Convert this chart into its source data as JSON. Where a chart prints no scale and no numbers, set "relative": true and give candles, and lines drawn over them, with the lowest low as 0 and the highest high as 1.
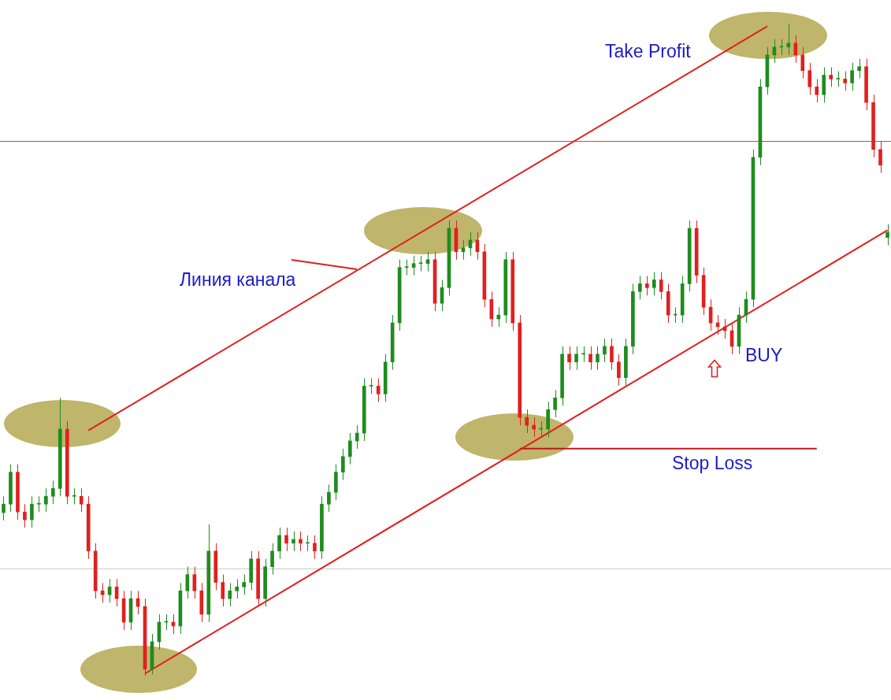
{
  "chart_data": {
    "type": "candlestick",
    "relative": true,
    "categories": [
      null,
      null,
      null,
      null,
      null,
      null,
      null,
      null,
      null,
      null,
      null,
      null,
      null,
      null,
      null,
      null,
      null,
      null,
      null,
      null,
      null,
      null,
      null,
      null,
      null,
      null,
      null,
      null,
      null,
      null,
      null,
      null,
      null,
      null,
      null,
      null,
      null,
      null,
      null,
      null,
      null,
      null,
      null,
      null,
      null,
      null,
      null,
      null,
      null,
      null,
      null,
      null,
      null,
      null,
      null,
      null,
      null,
      null,
      null,
      null,
      null,
      null,
      null,
      null,
      null,
      null,
      null,
      null,
      null,
      null,
      null,
      null,
      null,
      null,
      null,
      null,
      null,
      null,
      null,
      null,
      null,
      null,
      null,
      null,
      null,
      null,
      null,
      null,
      null,
      null,
      null,
      null,
      null,
      null,
      null,
      null,
      null,
      null,
      null,
      null,
      null,
      null,
      null,
      null,
      null,
      null,
      null,
      null,
      null,
      null,
      null,
      null,
      null,
      null,
      null,
      null,
      null,
      null,
      null,
      null,
      null,
      null,
      null,
      null,
      null,
      null
    ],
    "ohlc": [
      [
        0.25,
        0.275,
        0.238,
        0.263
      ],
      [
        0.263,
        0.324,
        0.251,
        0.312
      ],
      [
        0.312,
        0.324,
        0.239,
        0.251
      ],
      [
        0.251,
        0.263,
        0.227,
        0.239
      ],
      [
        0.239,
        0.275,
        0.227,
        0.263
      ],
      [
        0.263,
        0.275,
        0.251,
        0.263
      ],
      [
        0.263,
        0.287,
        0.251,
        0.275
      ],
      [
        0.275,
        0.299,
        0.263,
        0.287
      ],
      [
        0.287,
        0.426,
        0.275,
        0.378
      ],
      [
        0.378,
        0.39,
        0.263,
        0.275
      ],
      [
        0.275,
        0.287,
        0.263,
        0.275
      ],
      [
        0.275,
        0.287,
        0.251,
        0.263
      ],
      [
        0.263,
        0.275,
        0.179,
        0.191
      ],
      [
        0.191,
        0.203,
        0.118,
        0.13
      ],
      [
        0.13,
        0.142,
        0.112,
        0.124
      ],
      [
        0.124,
        0.148,
        0.112,
        0.136
      ],
      [
        0.136,
        0.148,
        0.106,
        0.118
      ],
      [
        0.118,
        0.13,
        0.07,
        0.082
      ],
      [
        0.082,
        0.13,
        0.07,
        0.118
      ],
      [
        0.118,
        0.13,
        0.094,
        0.106
      ],
      [
        0.106,
        0.118,
        0,
        0.01
      ],
      [
        0.01,
        0.064,
        0.002,
        0.052
      ],
      [
        0.052,
        0.094,
        0.04,
        0.082
      ],
      [
        0.082,
        0.094,
        0.07,
        0.082
      ],
      [
        0.082,
        0.094,
        0.064,
        0.076
      ],
      [
        0.076,
        0.142,
        0.064,
        0.13
      ],
      [
        0.13,
        0.167,
        0.118,
        0.155
      ],
      [
        0.155,
        0.167,
        0.118,
        0.13
      ],
      [
        0.13,
        0.142,
        0.082,
        0.094
      ],
      [
        0.094,
        0.232,
        0.082,
        0.191
      ],
      [
        0.191,
        0.203,
        0.131,
        0.143
      ],
      [
        0.143,
        0.155,
        0.106,
        0.118
      ],
      [
        0.118,
        0.142,
        0.106,
        0.13
      ],
      [
        0.13,
        0.148,
        0.118,
        0.136
      ],
      [
        0.136,
        0.155,
        0.124,
        0.143
      ],
      [
        0.143,
        0.191,
        0.131,
        0.179
      ],
      [
        0.179,
        0.191,
        0.106,
        0.118
      ],
      [
        0.118,
        0.179,
        0.106,
        0.167
      ],
      [
        0.167,
        0.203,
        0.155,
        0.191
      ],
      [
        0.191,
        0.227,
        0.179,
        0.215
      ],
      [
        0.215,
        0.227,
        0.191,
        0.203
      ],
      [
        0.203,
        0.221,
        0.191,
        0.209
      ],
      [
        0.209,
        0.221,
        0.191,
        0.203
      ],
      [
        0.203,
        0.215,
        0.191,
        0.203
      ],
      [
        0.203,
        0.215,
        0.179,
        0.191
      ],
      [
        0.191,
        0.275,
        0.179,
        0.263
      ],
      [
        0.263,
        0.293,
        0.251,
        0.281
      ],
      [
        0.281,
        0.324,
        0.269,
        0.312
      ],
      [
        0.312,
        0.348,
        0.3,
        0.336
      ],
      [
        0.336,
        0.372,
        0.324,
        0.36
      ],
      [
        0.36,
        0.384,
        0.348,
        0.372
      ],
      [
        0.372,
        0.456,
        0.36,
        0.444
      ],
      [
        0.444,
        0.456,
        0.432,
        0.444
      ],
      [
        0.444,
        0.456,
        0.42,
        0.432
      ],
      [
        0.432,
        0.493,
        0.42,
        0.481
      ],
      [
        0.481,
        0.553,
        0.469,
        0.541
      ],
      [
        0.541,
        0.638,
        0.529,
        0.626
      ],
      [
        0.626,
        0.638,
        0.614,
        0.626
      ],
      [
        0.626,
        0.644,
        0.614,
        0.632
      ],
      [
        0.632,
        0.644,
        0.62,
        0.632
      ],
      [
        0.632,
        0.65,
        0.62,
        0.638
      ],
      [
        0.638,
        0.65,
        0.559,
        0.571
      ],
      [
        0.571,
        0.607,
        0.559,
        0.595
      ],
      [
        0.595,
        0.698,
        0.583,
        0.686
      ],
      [
        0.686,
        0.698,
        0.638,
        0.65
      ],
      [
        0.65,
        0.668,
        0.638,
        0.656
      ],
      [
        0.656,
        0.68,
        0.644,
        0.668
      ],
      [
        0.668,
        0.68,
        0.638,
        0.65
      ],
      [
        0.65,
        0.662,
        0.565,
        0.577
      ],
      [
        0.577,
        0.589,
        0.535,
        0.547
      ],
      [
        0.547,
        0.565,
        0.535,
        0.553
      ],
      [
        0.553,
        0.65,
        0.541,
        0.638
      ],
      [
        0.638,
        0.65,
        0.529,
        0.541
      ],
      [
        0.541,
        0.553,
        0.384,
        0.396
      ],
      [
        0.396,
        0.408,
        0.372,
        0.384
      ],
      [
        0.384,
        0.396,
        0.366,
        0.378
      ],
      [
        0.378,
        0.39,
        0.366,
        0.378
      ],
      [
        0.378,
        0.42,
        0.366,
        0.408
      ],
      [
        0.408,
        0.438,
        0.396,
        0.426
      ],
      [
        0.426,
        0.505,
        0.414,
        0.493
      ],
      [
        0.493,
        0.505,
        0.469,
        0.481
      ],
      [
        0.481,
        0.505,
        0.469,
        0.493
      ],
      [
        0.493,
        0.505,
        0.481,
        0.493
      ],
      [
        0.493,
        0.505,
        0.469,
        0.481
      ],
      [
        0.481,
        0.505,
        0.469,
        0.493
      ],
      [
        0.493,
        0.517,
        0.481,
        0.505
      ],
      [
        0.505,
        0.517,
        0.469,
        0.481
      ],
      [
        0.481,
        0.493,
        0.445,
        0.457
      ],
      [
        0.457,
        0.517,
        0.445,
        0.505
      ],
      [
        0.505,
        0.601,
        0.493,
        0.589
      ],
      [
        0.589,
        0.613,
        0.577,
        0.601
      ],
      [
        0.601,
        0.613,
        0.583,
        0.595
      ],
      [
        0.595,
        0.619,
        0.583,
        0.607
      ],
      [
        0.607,
        0.619,
        0.577,
        0.589
      ],
      [
        0.589,
        0.601,
        0.541,
        0.553
      ],
      [
        0.553,
        0.565,
        0.541,
        0.553
      ],
      [
        0.553,
        0.613,
        0.541,
        0.601
      ],
      [
        0.601,
        0.698,
        0.589,
        0.686
      ],
      [
        0.686,
        0.698,
        0.602,
        0.614
      ],
      [
        0.614,
        0.626,
        0.553,
        0.565
      ],
      [
        0.565,
        0.577,
        0.529,
        0.541
      ],
      [
        0.541,
        0.553,
        0.523,
        0.535
      ],
      [
        0.535,
        0.547,
        0.517,
        0.529
      ],
      [
        0.529,
        0.541,
        0.493,
        0.505
      ],
      [
        0.505,
        0.565,
        0.493,
        0.553
      ],
      [
        0.553,
        0.589,
        0.541,
        0.577
      ],
      [
        0.577,
        0.807,
        0.565,
        0.795
      ],
      [
        0.795,
        0.915,
        0.783,
        0.903
      ],
      [
        0.903,
        0.964,
        0.891,
        0.952
      ],
      [
        0.952,
        0.976,
        0.94,
        0.964
      ],
      [
        0.964,
        0.976,
        0.952,
        0.964
      ],
      [
        0.964,
        1,
        0.952,
        0.97
      ],
      [
        0.97,
        0.982,
        0.94,
        0.952
      ],
      [
        0.952,
        0.964,
        0.916,
        0.928
      ],
      [
        0.928,
        0.94,
        0.891,
        0.903
      ],
      [
        0.903,
        0.915,
        0.879,
        0.891
      ],
      [
        0.891,
        0.933,
        0.879,
        0.921
      ],
      [
        0.921,
        0.933,
        0.903,
        0.915
      ],
      [
        0.915,
        0.927,
        0.903,
        0.915
      ],
      [
        0.915,
        0.927,
        0.897,
        0.909
      ],
      [
        0.909,
        0.94,
        0.897,
        0.928
      ],
      [
        0.928,
        0.946,
        0.916,
        0.934
      ],
      [
        0.934,
        0.946,
        0.867,
        0.879
      ],
      [
        0.879,
        0.891,
        0.795,
        0.807
      ],
      [
        0.807,
        0.819,
        0.771,
        0.783
      ],
      [
        0.672,
        0.692,
        0.66,
        0.68
      ]
    ],
    "colors": [
      "#1e8c1e",
      "#1e8c1e",
      "#e02020",
      "#e02020",
      "#1e8c1e",
      "#1e8c1e",
      "#1e8c1e",
      "#1e8c1e",
      "#1e8c1e",
      "#e02020",
      "#1e8c1e",
      "#e02020",
      "#e02020",
      "#e02020",
      "#e02020",
      "#1e8c1e",
      "#e02020",
      "#e02020",
      "#1e8c1e",
      "#e02020",
      "#e02020",
      "#1e8c1e",
      "#1e8c1e",
      "#1e8c1e",
      "#e02020",
      "#1e8c1e",
      "#1e8c1e",
      "#e02020",
      "#e02020",
      "#1e8c1e",
      "#e02020",
      "#e02020",
      "#1e8c1e",
      "#1e8c1e",
      "#1e8c1e",
      "#1e8c1e",
      "#e02020",
      "#1e8c1e",
      "#1e8c1e",
      "#1e8c1e",
      "#e02020",
      "#1e8c1e",
      "#e02020",
      "#1e8c1e",
      "#e02020",
      "#1e8c1e",
      "#1e8c1e",
      "#1e8c1e",
      "#1e8c1e",
      "#1e8c1e",
      "#1e8c1e",
      "#1e8c1e",
      "#1e8c1e",
      "#e02020",
      "#1e8c1e",
      "#1e8c1e",
      "#1e8c1e",
      "#1e8c1e",
      "#1e8c1e",
      "#1e8c1e",
      "#1e8c1e",
      "#e02020",
      "#1e8c1e",
      "#1e8c1e",
      "#e02020",
      "#1e8c1e",
      "#1e8c1e",
      "#e02020",
      "#e02020",
      "#e02020",
      "#1e8c1e",
      "#1e8c1e",
      "#e02020",
      "#e02020",
      "#e02020",
      "#e02020",
      "#1e8c1e",
      "#1e8c1e",
      "#1e8c1e",
      "#1e8c1e",
      "#e02020",
      "#1e8c1e",
      "#1e8c1e",
      "#e02020",
      "#1e8c1e",
      "#1e8c1e",
      "#e02020",
      "#e02020",
      "#1e8c1e",
      "#1e8c1e",
      "#1e8c1e",
      "#e02020",
      "#1e8c1e",
      "#e02020",
      "#e02020",
      "#1e8c1e",
      "#1e8c1e",
      "#1e8c1e",
      "#e02020",
      "#e02020",
      "#e02020",
      "#e02020",
      "#e02020",
      "#e02020",
      "#1e8c1e",
      "#1e8c1e",
      "#1e8c1e",
      "#1e8c1e",
      "#1e8c1e",
      "#1e8c1e",
      "#1e8c1e",
      "#1e8c1e",
      "#e02020",
      "#e02020",
      "#e02020",
      "#e02020",
      "#1e8c1e",
      "#e02020",
      "#1e8c1e",
      "#e02020",
      "#1e8c1e",
      "#1e8c1e",
      "#e02020",
      "#e02020",
      "#e02020",
      "#1e8c1e"
    ],
    "series": [
      {
        "type": "line",
        "color": "#e02020",
        "values": [
          null,
          null,
          null,
          null,
          null,
          null,
          null,
          null,
          null,
          null,
          null,
          null,
          0.376,
          null,
          null,
          null,
          null,
          null,
          null,
          null,
          null,
          null,
          null,
          null,
          null,
          null,
          null,
          null,
          null,
          null,
          null,
          null,
          null,
          null,
          null,
          null,
          null,
          null,
          null,
          null,
          null,
          null,
          null,
          null,
          null,
          null,
          null,
          null,
          null,
          null,
          null,
          null,
          null,
          null,
          null,
          null,
          null,
          null,
          null,
          null,
          null,
          null,
          null,
          null,
          null,
          null,
          null,
          null,
          null,
          null,
          null,
          null,
          null,
          null,
          null,
          null,
          null,
          null,
          null,
          null,
          null,
          null,
          null,
          null,
          null,
          null,
          null,
          null,
          null,
          null,
          null,
          null,
          null,
          null,
          null,
          null,
          null,
          null,
          null,
          null,
          null,
          null,
          null,
          null,
          null,
          null,
          null,
          null,
          0.996,
          null,
          null,
          null,
          null,
          null,
          null,
          null,
          null,
          null,
          null,
          null,
          null,
          null,
          null,
          null,
          null,
          null
        ]
      },
      {
        "type": "line",
        "color": "#e02020",
        "values": [
          null,
          null,
          null,
          null,
          null,
          null,
          null,
          null,
          null,
          null,
          null,
          null,
          null,
          null,
          null,
          null,
          null,
          null,
          null,
          null,
          0.003,
          null,
          null,
          null,
          null,
          null,
          null,
          null,
          null,
          null,
          null,
          null,
          null,
          null,
          null,
          null,
          null,
          null,
          null,
          null,
          null,
          null,
          null,
          null,
          null,
          null,
          null,
          null,
          null,
          null,
          null,
          null,
          null,
          null,
          null,
          null,
          null,
          null,
          null,
          null,
          null,
          null,
          null,
          null,
          null,
          null,
          null,
          null,
          null,
          null,
          null,
          null,
          null,
          null,
          null,
          null,
          null,
          null,
          null,
          null,
          null,
          null,
          null,
          null,
          null,
          null,
          null,
          null,
          null,
          null,
          null,
          null,
          null,
          null,
          null,
          null,
          null,
          null,
          null,
          null,
          null,
          null,
          null,
          null,
          null,
          null,
          null,
          null,
          null,
          null,
          null,
          null,
          null,
          null,
          null,
          null,
          null,
          null,
          null,
          null,
          null,
          null,
          null,
          null,
          null,
          0.683
        ]
      },
      {
        "type": "line",
        "color": "#c01818",
        "values": [
          null,
          null,
          null,
          null,
          null,
          null,
          null,
          null,
          null,
          null,
          null,
          null,
          null,
          null,
          null,
          null,
          null,
          null,
          null,
          null,
          null,
          null,
          null,
          null,
          null,
          null,
          null,
          null,
          null,
          null,
          null,
          null,
          null,
          null,
          null,
          null,
          null,
          null,
          null,
          null,
          null,
          null,
          null,
          null,
          null,
          null,
          null,
          null,
          null,
          null,
          null,
          null,
          null,
          null,
          null,
          null,
          null,
          null,
          null,
          null,
          null,
          null,
          null,
          null,
          null,
          null,
          null,
          null,
          null,
          null,
          null,
          null,
          null,
          0.348,
          null,
          null,
          null,
          null,
          null,
          null,
          null,
          null,
          null,
          null,
          null,
          null,
          null,
          null,
          null,
          null,
          null,
          null,
          null,
          null,
          null,
          null,
          null,
          null,
          null,
          null,
          null,
          null,
          null,
          null,
          null,
          null,
          null,
          null,
          null,
          null,
          null,
          null,
          null,
          null,
          null,
          0.348,
          null,
          null,
          null,
          null,
          null,
          null,
          null,
          null,
          null,
          null
        ]
      }
    ],
    "ref_lines": [
      {
        "axis": "y",
        "value": 0.82,
        "color": "#f03a3a"
      },
      {
        "axis": "y",
        "value": 0.164,
        "color": "#cccccc"
      }
    ],
    "annotations": [
      "Take Profit",
      "Линия канала",
      "BUY",
      "Stop Loss"
    ],
    "marker": "none",
    "legend": false,
    "tick_labels": false
  }
}
